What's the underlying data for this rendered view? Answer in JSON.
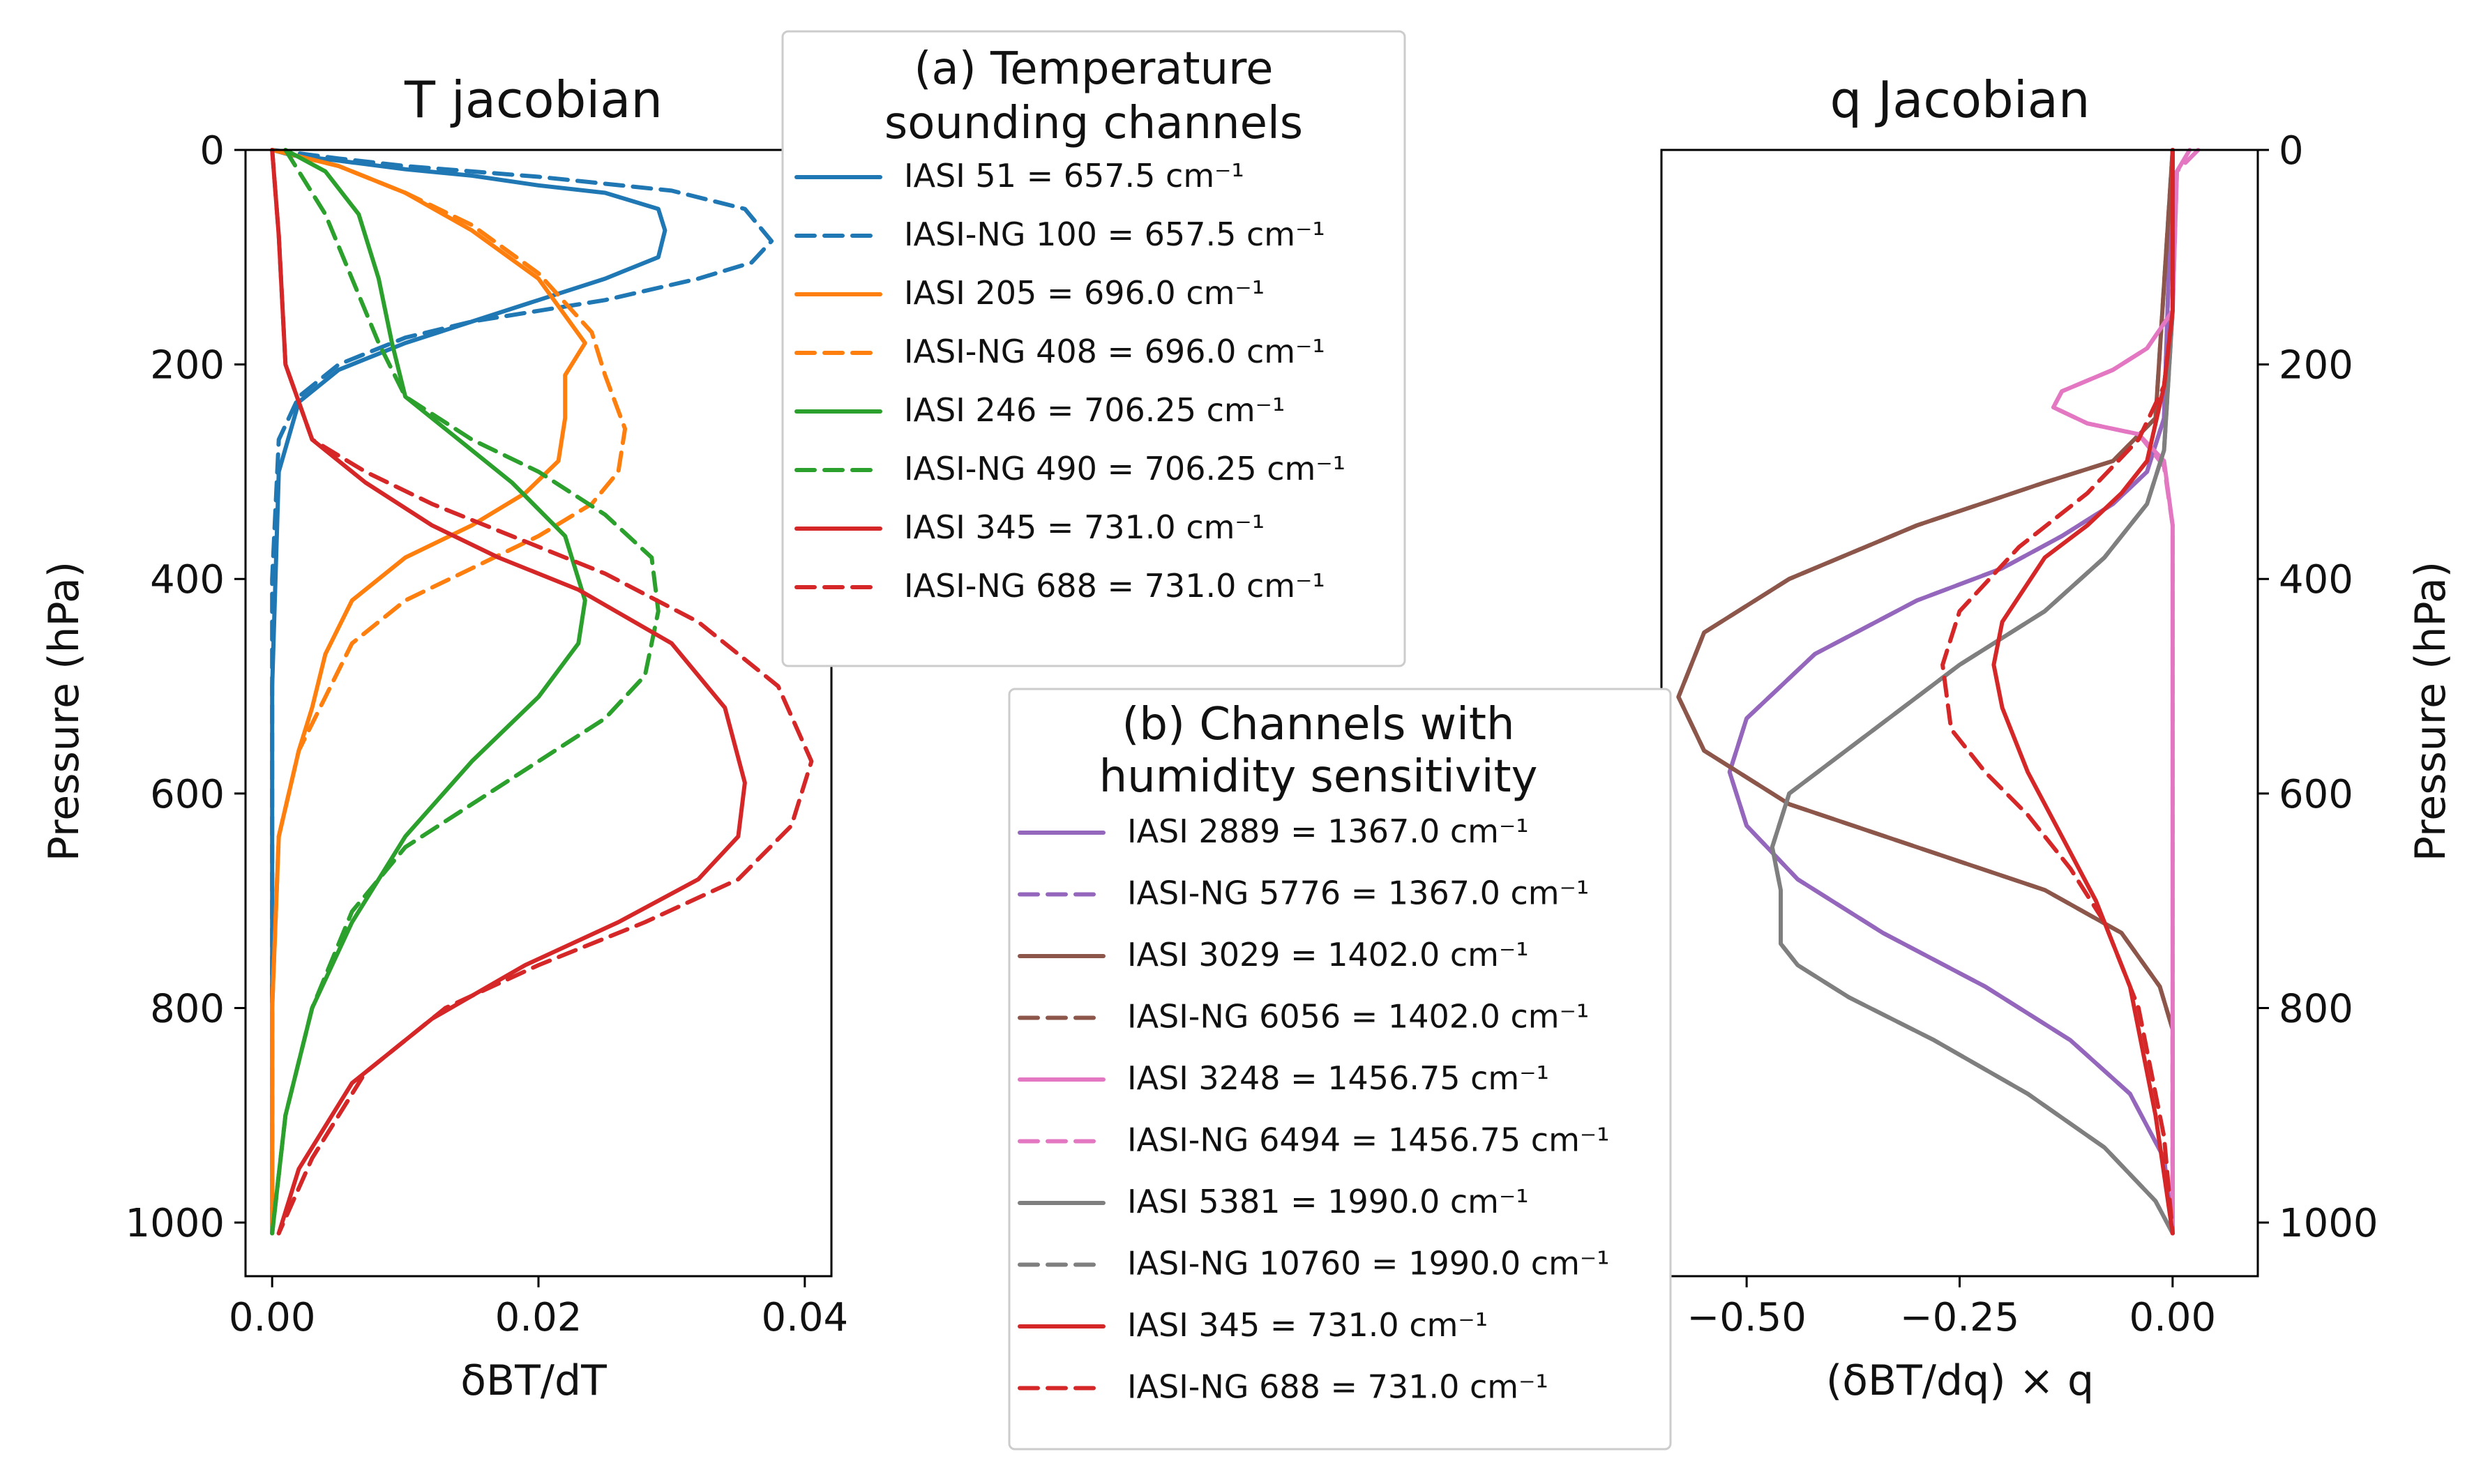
{
  "chart_data": [
    {
      "type": "line",
      "title": "T jacobian",
      "xlabel": "δBT/dT",
      "ylabel": "Pressure (hPa)",
      "xlim": [
        -0.002,
        0.042
      ],
      "ylim": [
        1050,
        0
      ],
      "xticks": [
        0.0,
        0.02,
        0.04
      ],
      "xtick_labels": [
        "0.00",
        "0.02",
        "0.04"
      ],
      "yticks": [
        0,
        200,
        400,
        600,
        800,
        1000
      ],
      "ytick_labels": [
        "0",
        "200",
        "400",
        "600",
        "800",
        "1000"
      ],
      "legend": {
        "title_lines": [
          "(a) Temperature",
          "sounding channels"
        ],
        "placement": "upper-right, outside axes"
      },
      "series": [
        {
          "name": "IASI  51 = 657.5 cm⁻¹",
          "color": "#1f77b4",
          "dash": "solid",
          "x": [
            0.0,
            0.0015,
            0.005,
            0.01,
            0.015,
            0.02,
            0.025,
            0.029,
            0.0295,
            0.029,
            0.025,
            0.02,
            0.015,
            0.01,
            0.005,
            0.002,
            0.0005,
            0.0,
            0.0
          ],
          "p": [
            0,
            5,
            10,
            18,
            24,
            33,
            40,
            55,
            75,
            100,
            120,
            140,
            160,
            180,
            205,
            235,
            300,
            500,
            1010
          ]
        },
        {
          "name": "IASI-NG 100 = 657.5 cm⁻¹",
          "color": "#1f77b4",
          "dash": "dashed",
          "x": [
            0.0,
            0.005,
            0.01,
            0.02,
            0.03,
            0.0355,
            0.0375,
            0.036,
            0.032,
            0.025,
            0.02,
            0.015,
            0.01,
            0.005,
            0.002,
            0.0005,
            0.0,
            0.0
          ],
          "p": [
            0,
            8,
            15,
            25,
            38,
            55,
            85,
            105,
            120,
            140,
            150,
            160,
            175,
            200,
            230,
            270,
            400,
            1010
          ]
        },
        {
          "name": "IASI 205 = 696.0 cm⁻¹",
          "color": "#ff7f0e",
          "dash": "solid",
          "x": [
            0.0,
            0.005,
            0.01,
            0.015,
            0.02,
            0.0235,
            0.022,
            0.022,
            0.0215,
            0.019,
            0.015,
            0.01,
            0.006,
            0.004,
            0.003,
            0.002,
            0.0005,
            0.0,
            0.0
          ],
          "p": [
            0,
            15,
            40,
            75,
            120,
            180,
            210,
            250,
            290,
            320,
            350,
            380,
            420,
            470,
            520,
            560,
            640,
            800,
            1010
          ]
        },
        {
          "name": "IASI-NG 408 = 696.0 cm⁻¹",
          "color": "#ff7f0e",
          "dash": "dashed",
          "x": [
            0.0,
            0.005,
            0.01,
            0.015,
            0.02,
            0.024,
            0.025,
            0.0265,
            0.026,
            0.024,
            0.02,
            0.015,
            0.01,
            0.006,
            0.004,
            0.002,
            0.0005,
            0.0,
            0.0
          ],
          "p": [
            0,
            15,
            40,
            70,
            115,
            170,
            210,
            260,
            300,
            330,
            360,
            390,
            420,
            460,
            510,
            560,
            640,
            800,
            1010
          ]
        },
        {
          "name": "IASI 246 = 706.25 cm⁻¹",
          "color": "#2ca02c",
          "dash": "solid",
          "x": [
            0.001,
            0.004,
            0.0065,
            0.008,
            0.009,
            0.01,
            0.014,
            0.018,
            0.022,
            0.0235,
            0.023,
            0.02,
            0.015,
            0.01,
            0.006,
            0.003,
            0.001,
            0.0
          ],
          "p": [
            0,
            20,
            60,
            120,
            180,
            230,
            270,
            310,
            360,
            420,
            460,
            510,
            570,
            640,
            720,
            800,
            900,
            1010
          ]
        },
        {
          "name": "IASI-NG 490 = 706.25 cm⁻¹",
          "color": "#2ca02c",
          "dash": "dashed",
          "x": [
            0.001,
            0.002,
            0.004,
            0.006,
            0.008,
            0.01,
            0.015,
            0.02,
            0.025,
            0.0285,
            0.029,
            0.028,
            0.025,
            0.02,
            0.015,
            0.01,
            0.006,
            0.003,
            0.001,
            0.0
          ],
          "p": [
            0,
            20,
            60,
            120,
            180,
            230,
            270,
            300,
            340,
            380,
            430,
            490,
            530,
            570,
            610,
            650,
            710,
            800,
            900,
            1010
          ]
        },
        {
          "name": "IASI 345 = 731.0 cm⁻¹",
          "color": "#d62728",
          "dash": "solid",
          "x": [
            0.0,
            0.0005,
            0.001,
            0.003,
            0.007,
            0.012,
            0.017,
            0.023,
            0.03,
            0.034,
            0.0355,
            0.035,
            0.032,
            0.026,
            0.019,
            0.012,
            0.006,
            0.002,
            0.0005
          ],
          "p": [
            0,
            80,
            200,
            270,
            310,
            350,
            380,
            410,
            460,
            520,
            590,
            640,
            680,
            720,
            760,
            810,
            870,
            950,
            1010
          ]
        },
        {
          "name": "IASI-NG 688 = 731.0 cm⁻¹",
          "color": "#d62728",
          "dash": "dashed",
          "x": [
            0.0,
            0.0005,
            0.001,
            0.003,
            0.007,
            0.012,
            0.018,
            0.025,
            0.032,
            0.038,
            0.0405,
            0.039,
            0.035,
            0.028,
            0.02,
            0.013,
            0.007,
            0.003,
            0.0005
          ],
          "p": [
            0,
            80,
            200,
            270,
            300,
            330,
            360,
            395,
            440,
            500,
            570,
            630,
            680,
            720,
            760,
            800,
            860,
            940,
            1010
          ]
        }
      ]
    },
    {
      "type": "line",
      "title": "q Jacobian",
      "xlabel": "(δBT/dq) × q",
      "ylabel": "Pressure (hPa)",
      "xlim": [
        -0.6,
        0.1
      ],
      "ylim": [
        1050,
        0
      ],
      "xticks": [
        -0.5,
        -0.25,
        0.0
      ],
      "xtick_labels": [
        "−0.50",
        "−0.25",
        "0.00"
      ],
      "yticks": [
        0,
        200,
        400,
        600,
        800,
        1000
      ],
      "ytick_labels": [
        "0",
        "200",
        "400",
        "600",
        "800",
        "1000"
      ],
      "legend": {
        "title_lines": [
          "(b) Channels with",
          "humidity sensitivity"
        ],
        "placement": "lower-left, overlapping axes"
      },
      "series": [
        {
          "name": "IASI 2889 = 1367.0 cm⁻¹",
          "color": "#9467bd",
          "dash": "solid",
          "x": [
            0.0,
            -0.01,
            -0.03,
            -0.07,
            -0.13,
            -0.2,
            -0.3,
            -0.42,
            -0.5,
            -0.52,
            -0.5,
            -0.44,
            -0.34,
            -0.22,
            -0.12,
            -0.05,
            -0.01,
            0.0
          ],
          "p": [
            0,
            250,
            300,
            330,
            360,
            390,
            420,
            470,
            530,
            580,
            630,
            680,
            730,
            780,
            830,
            880,
            940,
            1010
          ]
        },
        {
          "name": "IASI-NG 5776 = 1367.0 cm⁻¹",
          "color": "#9467bd",
          "dash": "dashed",
          "x": [
            0.0,
            -0.01,
            -0.03,
            -0.07,
            -0.13,
            -0.2,
            -0.3,
            -0.42,
            -0.5,
            -0.52,
            -0.5,
            -0.44,
            -0.34,
            -0.22,
            -0.12,
            -0.05,
            -0.01,
            0.0
          ],
          "p": [
            0,
            250,
            300,
            330,
            360,
            390,
            420,
            470,
            530,
            580,
            630,
            680,
            730,
            780,
            830,
            880,
            940,
            1010
          ]
        },
        {
          "name": "IASI 3029 = 1402.0 cm⁻¹",
          "color": "#8c564b",
          "dash": "solid",
          "x": [
            0.0,
            -0.02,
            -0.07,
            -0.15,
            -0.3,
            -0.45,
            -0.55,
            -0.58,
            -0.55,
            -0.45,
            -0.3,
            -0.15,
            -0.06,
            -0.015,
            0.0,
            0.0
          ],
          "p": [
            0,
            250,
            290,
            310,
            350,
            400,
            450,
            510,
            560,
            610,
            650,
            690,
            730,
            780,
            820,
            1010
          ]
        },
        {
          "name": "IASI-NG 6056 = 1402.0 cm⁻¹",
          "color": "#8c564b",
          "dash": "dashed",
          "x": [
            0.0,
            -0.02,
            -0.07,
            -0.15,
            -0.3,
            -0.45,
            -0.55,
            -0.58,
            -0.55,
            -0.45,
            -0.3,
            -0.15,
            -0.06,
            -0.015,
            0.0,
            0.0
          ],
          "p": [
            0,
            250,
            290,
            310,
            350,
            400,
            450,
            510,
            560,
            610,
            650,
            690,
            730,
            780,
            820,
            1010
          ]
        },
        {
          "name": "IASI 3248 = 1456.75 cm⁻¹",
          "color": "#e377c2",
          "dash": "solid",
          "x": [
            0.02,
            0.005,
            0.0,
            -0.03,
            -0.07,
            -0.13,
            -0.14,
            -0.1,
            -0.04,
            -0.01,
            0.0,
            0.0
          ],
          "p": [
            0,
            20,
            150,
            185,
            205,
            225,
            240,
            255,
            265,
            290,
            350,
            1010
          ]
        },
        {
          "name": "IASI-NG 6494 = 1456.75 cm⁻¹",
          "color": "#e377c2",
          "dash": "dashed",
          "x": [
            0.03,
            0.005,
            0.0,
            -0.03,
            -0.07,
            -0.13,
            -0.14,
            -0.1,
            -0.04,
            -0.01,
            0.0,
            0.0
          ],
          "p": [
            0,
            20,
            150,
            185,
            205,
            225,
            240,
            255,
            265,
            295,
            350,
            1010
          ]
        },
        {
          "name": "IASI 5381 = 1990.0 cm⁻¹",
          "color": "#7f7f7f",
          "dash": "solid",
          "x": [
            0.0,
            0.0,
            -0.01,
            -0.03,
            -0.08,
            -0.15,
            -0.25,
            -0.35,
            -0.45,
            -0.47,
            -0.46,
            -0.46,
            -0.44,
            -0.38,
            -0.28,
            -0.17,
            -0.08,
            -0.02,
            0.0
          ],
          "p": [
            0,
            150,
            280,
            330,
            380,
            430,
            480,
            540,
            600,
            650,
            690,
            740,
            760,
            790,
            830,
            880,
            930,
            980,
            1010
          ]
        },
        {
          "name": "IASI-NG 10760 = 1990.0 cm⁻¹",
          "color": "#7f7f7f",
          "dash": "dashed",
          "x": [
            0.0,
            0.0,
            -0.01,
            -0.03,
            -0.08,
            -0.15,
            -0.25,
            -0.35,
            -0.45,
            -0.47,
            -0.46,
            -0.46,
            -0.44,
            -0.38,
            -0.28,
            -0.17,
            -0.08,
            -0.02,
            0.0
          ],
          "p": [
            0,
            150,
            280,
            330,
            380,
            430,
            480,
            540,
            600,
            650,
            690,
            740,
            760,
            790,
            830,
            880,
            930,
            980,
            1010
          ]
        },
        {
          "name": "IASI  345 = 731.0 cm⁻¹",
          "color": "#d62728",
          "dash": "solid",
          "x": [
            0.0,
            0.0,
            -0.01,
            -0.03,
            -0.06,
            -0.1,
            -0.15,
            -0.2,
            -0.21,
            -0.2,
            -0.17,
            -0.13,
            -0.09,
            -0.05,
            -0.02,
            0.0
          ],
          "p": [
            0,
            150,
            220,
            290,
            320,
            350,
            380,
            440,
            480,
            520,
            580,
            640,
            700,
            780,
            900,
            1010
          ]
        },
        {
          "name": "IASI-NG  688 = 731.0 cm⁻¹",
          "color": "#d62728",
          "dash": "dashed",
          "x": [
            0.0,
            0.0,
            -0.01,
            -0.04,
            -0.1,
            -0.18,
            -0.25,
            -0.27,
            -0.26,
            -0.22,
            -0.17,
            -0.12,
            -0.08,
            -0.04,
            -0.01,
            0.0
          ],
          "p": [
            0,
            150,
            220,
            270,
            320,
            370,
            430,
            480,
            540,
            580,
            620,
            670,
            720,
            800,
            920,
            1010
          ]
        }
      ]
    }
  ]
}
